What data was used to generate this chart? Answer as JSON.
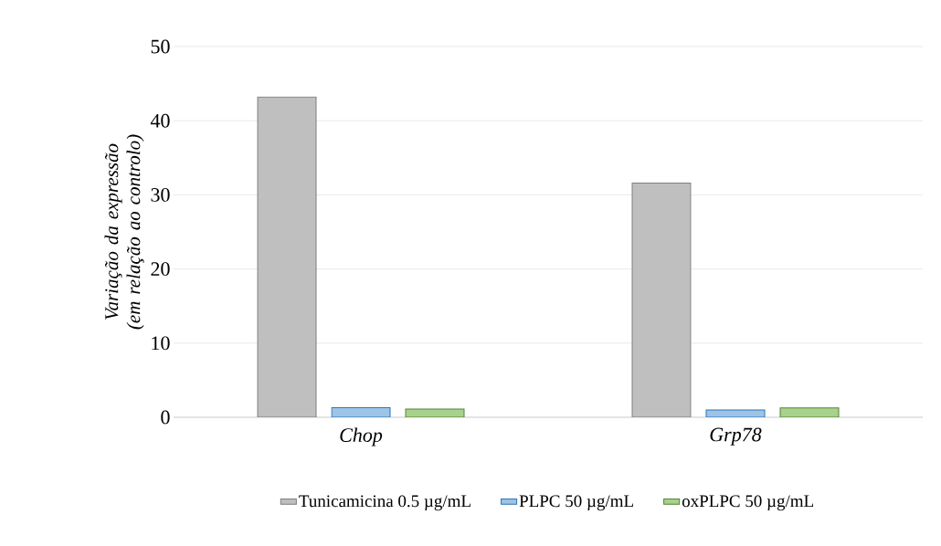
{
  "chart_data": {
    "type": "bar",
    "ylabel": "Variação da expressão (em relação ao controlo)",
    "categories": [
      "Chop",
      "Grp78"
    ],
    "series": [
      {
        "name": "Tunicamicina 0.5 µg/mL",
        "color": "#bfbfbf",
        "values": [
          43.2,
          31.6
        ]
      },
      {
        "name": "PLPC 50 µg/mL",
        "color": "#9dc3e6",
        "values": [
          1.3,
          1.0
        ]
      },
      {
        "name": "oxPLPC 50 µg/mL",
        "color": "#a9d18e",
        "values": [
          1.1,
          1.25
        ]
      }
    ],
    "ylim": [
      0,
      50
    ],
    "yticks": [
      0,
      10,
      20,
      30,
      40,
      50
    ],
    "grid": "y",
    "legend": "bottom"
  }
}
